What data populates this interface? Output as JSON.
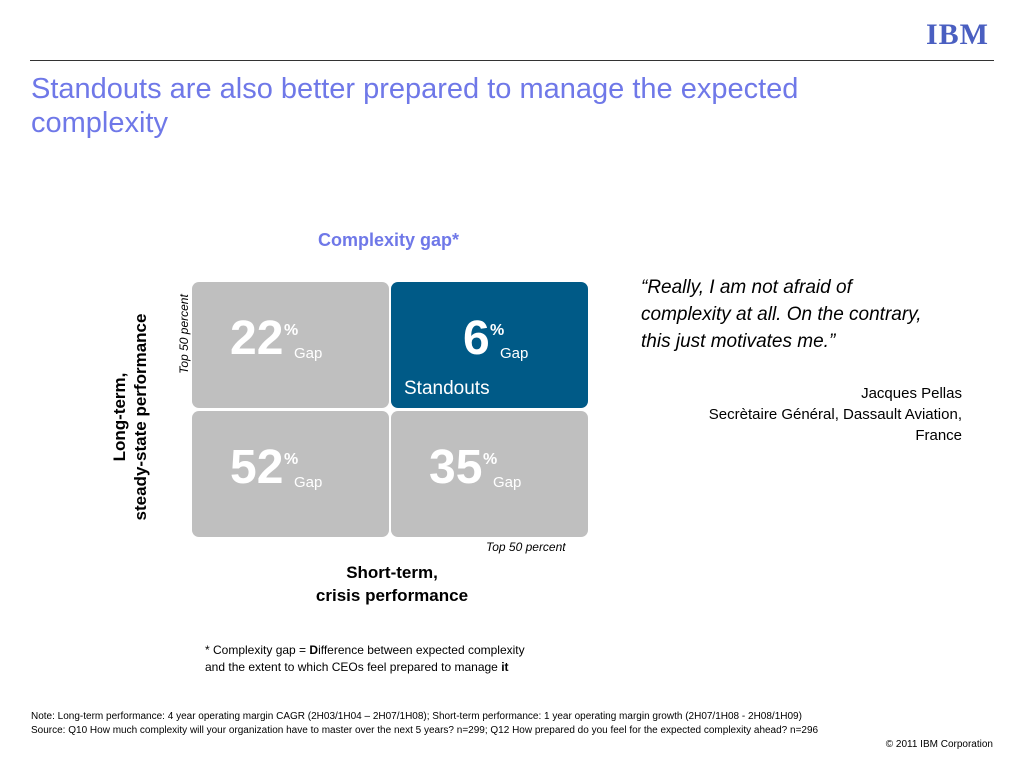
{
  "header": {
    "logo": "IBM",
    "title": "Standouts are also better prepared to manage the expected complexity"
  },
  "matrix": {
    "title": "Complexity gap*",
    "y_axis": {
      "lines": [
        "Long-term,",
        "steady-state  performance"
      ],
      "top_label": "Top 50 percent"
    },
    "x_axis": {
      "lines": [
        "Short-term,",
        "crisis performance"
      ],
      "top_label": "Top 50 percent"
    },
    "cells": [
      {
        "value": "22",
        "unit": "%",
        "label": "Gap"
      },
      {
        "value": "6",
        "unit": "%",
        "label": "Gap",
        "name": "Standouts"
      },
      {
        "value": "52",
        "unit": "%",
        "label": "Gap"
      },
      {
        "value": "35",
        "unit": "%",
        "label": "Gap"
      }
    ]
  },
  "footnote": {
    "parts": [
      "* Complexity gap = ",
      "D",
      "ifference between expected complexity",
      "and the extent to which CEOs feel prepared to manage ",
      "it"
    ]
  },
  "quote": {
    "text": "“Really, I am not afraid of complexity at all. On the contrary, this just motivates me.”",
    "author": "Jacques Pellas",
    "role": "Secrètaire Général, Dassault Aviation,",
    "country": "France"
  },
  "footer": {
    "note": "Note: Long-term performance: 4 year operating margin CAGR (2H03/1H04 – 2H07/1H08); Short-term performance: 1 year operating margin growth (2H07/1H08 - 2H08/1H09)",
    "source": "Source: Q10  How much complexity will your organization have to master over the next 5 years? n=299; Q12  How prepared do you feel for the expected complexity ahead? n=296",
    "copyright": "© 2011 IBM Corporation"
  }
}
